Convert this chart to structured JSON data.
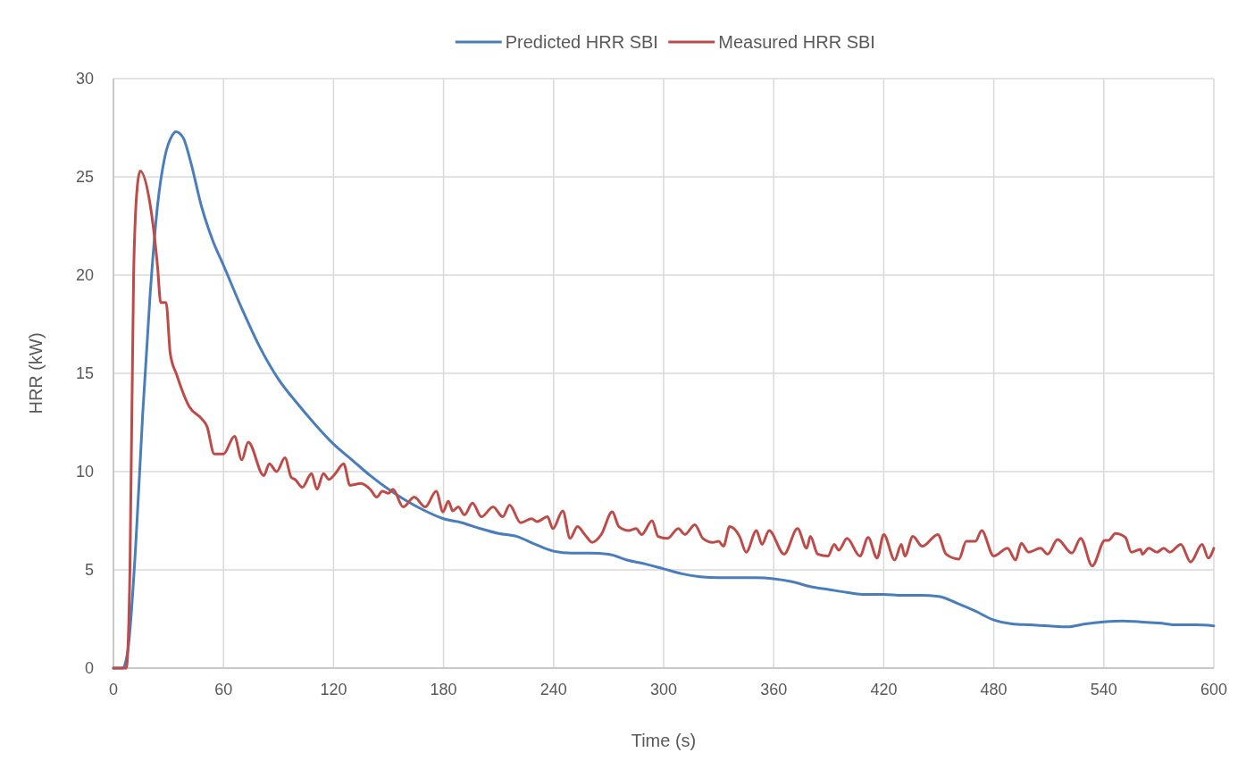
{
  "chart_data": {
    "type": "line",
    "xlabel": "Time (s)",
    "ylabel": "HRR (kW)",
    "xlim": [
      0,
      600
    ],
    "ylim": [
      0,
      30
    ],
    "xticks": [
      0,
      60,
      120,
      180,
      240,
      300,
      360,
      420,
      480,
      540,
      600
    ],
    "yticks": [
      0,
      5,
      10,
      15,
      20,
      25,
      30
    ],
    "grid": true,
    "legend": "top",
    "line_style": "solid",
    "marker": "none",
    "series": [
      {
        "name": "Predicted HRR SBI",
        "color": "#4a7ebb",
        "x": [
          0,
          5,
          8,
          12,
          16,
          20,
          24,
          28,
          32,
          34,
          38,
          42,
          48,
          54,
          60,
          70,
          80,
          90,
          100,
          110,
          120,
          130,
          140,
          150,
          160,
          170,
          180,
          190,
          200,
          210,
          220,
          230,
          240,
          250,
          260,
          270,
          280,
          290,
          300,
          310,
          320,
          330,
          340,
          350,
          360,
          370,
          380,
          390,
          400,
          410,
          420,
          430,
          440,
          450,
          460,
          470,
          480,
          490,
          500,
          510,
          520,
          530,
          540,
          550,
          560,
          570,
          580,
          590,
          600
        ],
        "values": [
          0,
          0,
          1,
          6,
          13,
          19,
          23.5,
          26,
          27.1,
          27.3,
          27,
          25.8,
          23.5,
          21.8,
          20.5,
          18.3,
          16.3,
          14.7,
          13.5,
          12.4,
          11.4,
          10.6,
          9.8,
          9.1,
          8.5,
          8,
          7.6,
          7.4,
          7.1,
          6.85,
          6.7,
          6.3,
          5.95,
          5.85,
          5.85,
          5.8,
          5.5,
          5.3,
          5.05,
          4.8,
          4.65,
          4.6,
          4.6,
          4.6,
          4.55,
          4.4,
          4.15,
          4,
          3.85,
          3.75,
          3.75,
          3.7,
          3.7,
          3.65,
          3.3,
          2.9,
          2.45,
          2.25,
          2.2,
          2.15,
          2.1,
          2.25,
          2.35,
          2.4,
          2.35,
          2.3,
          2.2,
          2.2,
          2.15
        ]
      },
      {
        "name": "Measured HRR SBI",
        "color": "#be4b48",
        "x": [
          0,
          5,
          7,
          9,
          11,
          13,
          14.6,
          20,
          24,
          25.8,
          28.7,
          31,
          34.6,
          41.4,
          48,
          51,
          55,
          60,
          66,
          70,
          73.5,
          82,
          85,
          89,
          93.5,
          97,
          99,
          103,
          108,
          111,
          114.5,
          117.5,
          121,
          125.5,
          129,
          135,
          140,
          143.6,
          146.6,
          150,
          152.4,
          158,
          164,
          170,
          176,
          179.7,
          182.6,
          185,
          188,
          191.4,
          195.8,
          200.6,
          207,
          212.3,
          216,
          222,
          228,
          231,
          236.7,
          239.6,
          245,
          249,
          253,
          257,
          261,
          266,
          272,
          275.6,
          281,
          285,
          288,
          293.7,
          297,
          302,
          308,
          311.6,
          317,
          321.4,
          326.8,
          330,
          332.6,
          336,
          341.4,
          345,
          350.6,
          353.6,
          357.5,
          365.7,
          373,
          378,
          380,
          384,
          389.6,
          393,
          395.5,
          400,
          407,
          411.5,
          416.4,
          420,
          426,
          429.6,
          431.5,
          435.9,
          441,
          449.5,
          454,
          461,
          465,
          470,
          473.4,
          480,
          487.5,
          491.9,
          495,
          499,
          505.5,
          509.4,
          514.8,
          522.6,
          527.4,
          533.7,
          540.6,
          542.5,
          546.4,
          551.8,
          555,
          560,
          561,
          564.5,
          569,
          572.7,
          576,
          582,
          587.3,
          593.6,
          597,
          600
        ],
        "values": [
          0,
          0,
          0,
          5,
          20,
          24.5,
          25.3,
          23.6,
          20.5,
          18.6,
          18.6,
          16,
          14.9,
          13.3,
          12.7,
          12.3,
          10.9,
          10.9,
          11.8,
          10.6,
          11.5,
          9.8,
          10.4,
          10,
          10.7,
          9.7,
          9.6,
          9.2,
          9.9,
          9.1,
          9.9,
          9.6,
          9.9,
          10.4,
          9.3,
          9.4,
          9.1,
          8.7,
          9,
          8.9,
          9.1,
          8.2,
          8.7,
          8.2,
          9,
          7.95,
          8.5,
          8,
          8.2,
          7.8,
          8.4,
          7.7,
          8.2,
          7.7,
          8.3,
          7.4,
          7.6,
          7.45,
          7.7,
          7.1,
          8,
          6.6,
          7.2,
          6.8,
          6.4,
          6.8,
          7.95,
          7.2,
          7,
          7.1,
          6.8,
          7.5,
          6.7,
          6.6,
          7.1,
          6.8,
          7.3,
          6.6,
          6.4,
          6.45,
          6.2,
          7.2,
          6.7,
          5.9,
          7,
          6.3,
          7,
          5.8,
          7.1,
          6.1,
          6.7,
          5.8,
          5.7,
          6.3,
          6,
          6.6,
          5.7,
          6.65,
          5.6,
          6.8,
          5.5,
          6.3,
          5.7,
          6.7,
          6.2,
          6.8,
          5.8,
          5.55,
          6.45,
          6.45,
          7,
          5.7,
          6.1,
          5.5,
          6.35,
          5.9,
          6.1,
          5.8,
          6.55,
          5.85,
          6.6,
          5.2,
          6.5,
          6.5,
          6.85,
          6.65,
          5.9,
          6.05,
          5.8,
          6.1,
          5.9,
          6.1,
          5.9,
          6.3,
          5.4,
          6.3,
          5.6,
          6.1
        ]
      }
    ]
  }
}
